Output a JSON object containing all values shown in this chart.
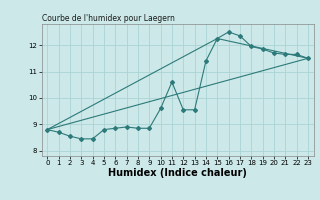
{
  "title": "Courbe de l'humidex pour Laegern",
  "xlabel": "Humidex (Indice chaleur)",
  "bg_color": "#cce8e8",
  "line_color": "#2d7a7a",
  "grid_color": "#aad4d4",
  "xlim": [
    -0.5,
    23.5
  ],
  "ylim": [
    7.8,
    12.8
  ],
  "xticks": [
    0,
    1,
    2,
    3,
    4,
    5,
    6,
    7,
    8,
    9,
    10,
    11,
    12,
    13,
    14,
    15,
    16,
    17,
    18,
    19,
    20,
    21,
    22,
    23
  ],
  "yticks": [
    8,
    9,
    10,
    11,
    12
  ],
  "series1_x": [
    0,
    1,
    2,
    3,
    4,
    5,
    6,
    7,
    8,
    9,
    10,
    11,
    12,
    13,
    14,
    15,
    16,
    17,
    18,
    19,
    20,
    21,
    22,
    23
  ],
  "series1_y": [
    8.8,
    8.7,
    8.55,
    8.45,
    8.45,
    8.8,
    8.85,
    8.9,
    8.85,
    8.85,
    9.6,
    10.6,
    9.55,
    9.55,
    11.4,
    12.25,
    12.5,
    12.35,
    11.95,
    11.85,
    11.7,
    11.65,
    11.65,
    11.5
  ],
  "series2_x": [
    0,
    23
  ],
  "series2_y": [
    8.8,
    11.5
  ],
  "series3_x": [
    0,
    15,
    23
  ],
  "series3_y": [
    8.8,
    12.25,
    11.5
  ],
  "title_fontsize": 5.5,
  "xlabel_fontsize": 7.0,
  "tick_fontsize": 5.0
}
